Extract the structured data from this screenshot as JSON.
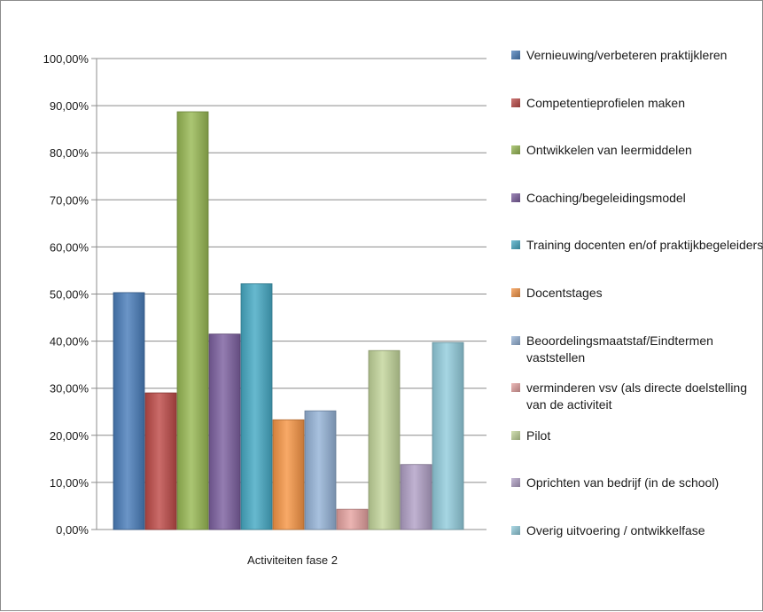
{
  "chart_data": {
    "type": "bar",
    "categories": [
      "Activiteiten fase 2"
    ],
    "ylim": [
      0,
      100
    ],
    "yticks": [
      "0,00%",
      "10,00%",
      "20,00%",
      "30,00%",
      "40,00%",
      "50,00%",
      "60,00%",
      "70,00%",
      "80,00%",
      "90,00%",
      "100,00%"
    ],
    "grid": true,
    "legend_position": "right",
    "series": [
      {
        "name": "Vernieuwing/verbeteren praktijkleren",
        "values": [
          50.3
        ],
        "color": "#4a7ebb"
      },
      {
        "name": "Competentieprofielen maken",
        "values": [
          29.0
        ],
        "color": "#be4b48"
      },
      {
        "name": "Ontwikkelen van leermiddelen",
        "values": [
          88.7
        ],
        "color": "#98b954"
      },
      {
        "name": "Coaching/begeleidingsmodel",
        "values": [
          41.5
        ],
        "color": "#7d60a0"
      },
      {
        "name": "Training  docenten en/of praktijkbegeleiders",
        "values": [
          52.2
        ],
        "color": "#46aac5"
      },
      {
        "name": "Docentstages",
        "values": [
          23.3
        ],
        "color": "#f79646"
      },
      {
        "name": "Beoordelingsmaatstaf/Eindtermen vaststellen",
        "values": [
          25.2
        ],
        "color": "#95b3d7"
      },
      {
        "name": "verminderen vsv (als directe doelstelling van de activiteit",
        "values": [
          4.3
        ],
        "color": "#e6a3a1"
      },
      {
        "name": "Pilot",
        "values": [
          38.0
        ],
        "color": "#c3d69b"
      },
      {
        "name": "Oprichten van bedrijf (in de school)",
        "values": [
          13.8
        ],
        "color": "#b2a1c7"
      },
      {
        "name": "Overig uitvoering / ontwikkelfase",
        "values": [
          39.7
        ],
        "color": "#93cddd"
      }
    ]
  }
}
